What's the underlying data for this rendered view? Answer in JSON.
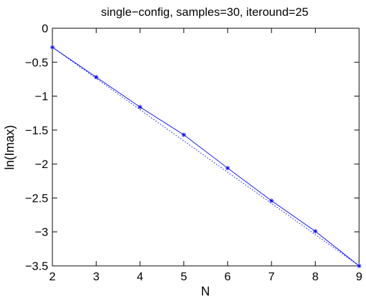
{
  "chart_data": {
    "type": "line",
    "title": "single−config, samples=30, iteround=25",
    "xlabel": "N",
    "ylabel": "ln(Imax)",
    "xlim": [
      2,
      9
    ],
    "ylim": [
      -3.5,
      0
    ],
    "xticks": [
      "2",
      "3",
      "4",
      "5",
      "6",
      "7",
      "8",
      "9"
    ],
    "yticks": [
      "0",
      "−0.5",
      "−1",
      "−1.5",
      "−2",
      "−2.5",
      "−3",
      "−3.5"
    ],
    "series": [
      {
        "marker": "asterisk",
        "line_style": "solid",
        "color": "#0000ff",
        "x": [
          2,
          3,
          4,
          5,
          6,
          7,
          8,
          9
        ],
        "y": [
          -0.28,
          -0.72,
          -1.16,
          -1.57,
          -2.06,
          -2.54,
          -2.99,
          -3.5
        ]
      }
    ],
    "fit_line": {
      "line_style": "dotted",
      "color": "#0000ff",
      "x": [
        2,
        9
      ],
      "y": [
        -0.28,
        -3.5
      ]
    },
    "grid": false,
    "legend": false
  }
}
